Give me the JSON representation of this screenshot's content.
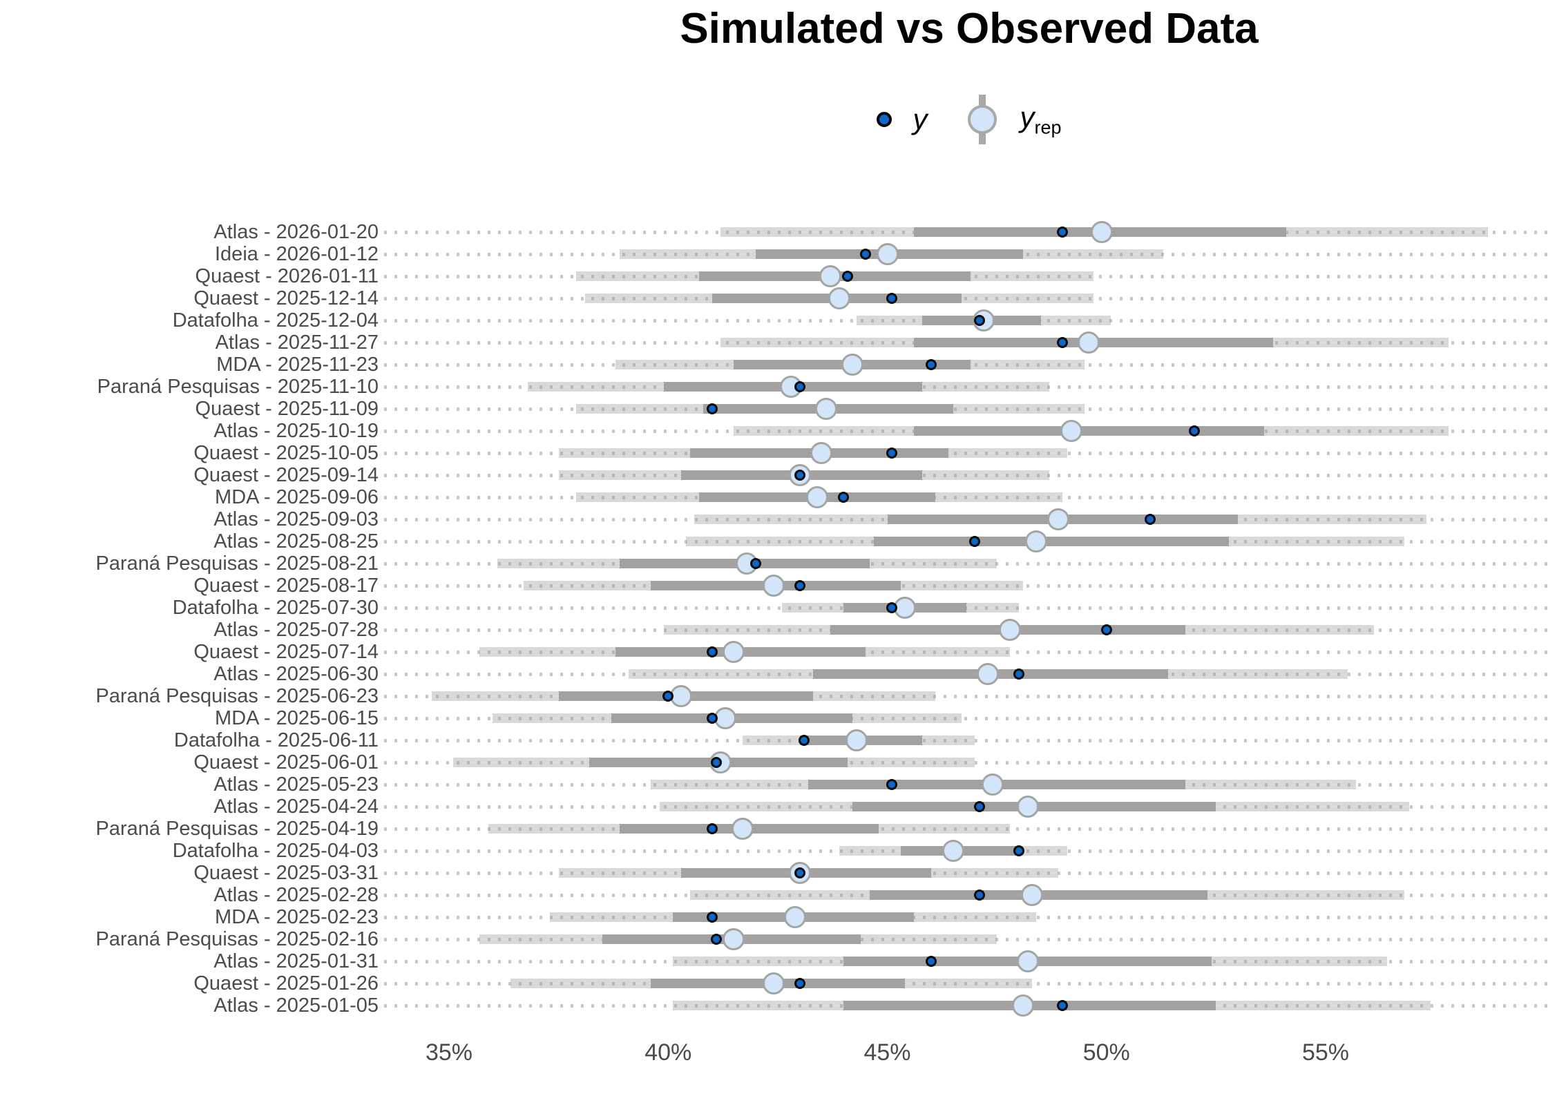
{
  "chart_data": {
    "type": "scatter",
    "variant": "ppc-intervals",
    "title": "Simulated vs Observed Data",
    "legend": {
      "y_label": "y",
      "yrep_base": "y",
      "yrep_sub": "rep"
    },
    "x_axis": {
      "tick_labels": [
        "35%",
        "40%",
        "45%",
        "50%",
        "55%"
      ],
      "tick_values": [
        35,
        40,
        45,
        50,
        55
      ],
      "range": [
        33.5,
        60.3
      ],
      "unit": "%",
      "grid": "dotted-row-guides"
    },
    "legend_position": "top-center",
    "marks": {
      "y": "dark-blue-dot",
      "yrep": "light-blue-circle",
      "inner_interval": "dark-gray-band",
      "outer_interval": "light-gray-band"
    },
    "rows": [
      {
        "label": "Atlas - 2026-01-20",
        "outer": [
          41.2,
          58.7
        ],
        "inner": [
          45.6,
          54.1
        ],
        "y": 49.0,
        "yrep": 49.9
      },
      {
        "label": "Ideia - 2026-01-12",
        "outer": [
          38.9,
          51.3
        ],
        "inner": [
          42.0,
          48.1
        ],
        "y": 44.5,
        "yrep": 45.0
      },
      {
        "label": "Quaest - 2026-01-11",
        "outer": [
          37.9,
          49.7
        ],
        "inner": [
          40.7,
          46.9
        ],
        "y": 44.1,
        "yrep": 43.7
      },
      {
        "label": "Quaest - 2025-12-14",
        "outer": [
          38.1,
          49.7
        ],
        "inner": [
          41.0,
          46.7
        ],
        "y": 45.1,
        "yrep": 43.9
      },
      {
        "label": "Datafolha - 2025-12-04",
        "outer": [
          44.3,
          50.1
        ],
        "inner": [
          45.8,
          48.5
        ],
        "y": 47.1,
        "yrep": 47.2
      },
      {
        "label": "Atlas - 2025-11-27",
        "outer": [
          41.2,
          57.8
        ],
        "inner": [
          45.6,
          53.8
        ],
        "y": 49.0,
        "yrep": 49.6
      },
      {
        "label": "MDA - 2025-11-23",
        "outer": [
          38.8,
          49.5
        ],
        "inner": [
          41.5,
          46.9
        ],
        "y": 46.0,
        "yrep": 44.2
      },
      {
        "label": "Paraná Pesquisas - 2025-11-10",
        "outer": [
          36.8,
          48.7
        ],
        "inner": [
          39.9,
          45.8
        ],
        "y": 43.0,
        "yrep": 42.8
      },
      {
        "label": "Quaest - 2025-11-09",
        "outer": [
          37.9,
          49.5
        ],
        "inner": [
          40.8,
          46.5
        ],
        "y": 41.0,
        "yrep": 43.6
      },
      {
        "label": "Atlas - 2025-10-19",
        "outer": [
          41.5,
          57.8
        ],
        "inner": [
          45.6,
          53.6
        ],
        "y": 52.0,
        "yrep": 49.2
      },
      {
        "label": "Quaest - 2025-10-05",
        "outer": [
          37.5,
          49.1
        ],
        "inner": [
          40.5,
          46.4
        ],
        "y": 45.1,
        "yrep": 43.5
      },
      {
        "label": "Quaest - 2025-09-14",
        "outer": [
          37.5,
          48.7
        ],
        "inner": [
          40.3,
          45.8
        ],
        "y": 43.0,
        "yrep": 43.0
      },
      {
        "label": "MDA - 2025-09-06",
        "outer": [
          37.9,
          49.0
        ],
        "inner": [
          40.7,
          46.1
        ],
        "y": 44.0,
        "yrep": 43.4
      },
      {
        "label": "Atlas - 2025-09-03",
        "outer": [
          40.6,
          57.3
        ],
        "inner": [
          45.0,
          53.0
        ],
        "y": 51.0,
        "yrep": 48.9
      },
      {
        "label": "Atlas - 2025-08-25",
        "outer": [
          40.4,
          56.8
        ],
        "inner": [
          44.7,
          52.8
        ],
        "y": 47.0,
        "yrep": 48.4
      },
      {
        "label": "Paraná Pesquisas - 2025-08-21",
        "outer": [
          36.1,
          47.5
        ],
        "inner": [
          38.9,
          44.6
        ],
        "y": 42.0,
        "yrep": 41.8
      },
      {
        "label": "Quaest - 2025-08-17",
        "outer": [
          36.7,
          48.1
        ],
        "inner": [
          39.6,
          45.3
        ],
        "y": 43.0,
        "yrep": 42.4
      },
      {
        "label": "Datafolha - 2025-07-30",
        "outer": [
          42.6,
          48.0
        ],
        "inner": [
          44.0,
          46.8
        ],
        "y": 45.1,
        "yrep": 45.4
      },
      {
        "label": "Atlas - 2025-07-28",
        "outer": [
          39.9,
          56.1
        ],
        "inner": [
          43.7,
          51.8
        ],
        "y": 50.0,
        "yrep": 47.8
      },
      {
        "label": "Quaest - 2025-07-14",
        "outer": [
          35.7,
          47.8
        ],
        "inner": [
          38.8,
          44.5
        ],
        "y": 41.0,
        "yrep": 41.5
      },
      {
        "label": "Atlas - 2025-06-30",
        "outer": [
          39.1,
          55.5
        ],
        "inner": [
          43.3,
          51.4
        ],
        "y": 48.0,
        "yrep": 47.3
      },
      {
        "label": "Paraná Pesquisas - 2025-06-23",
        "outer": [
          34.6,
          46.1
        ],
        "inner": [
          37.5,
          43.3
        ],
        "y": 40.0,
        "yrep": 40.3
      },
      {
        "label": "MDA - 2025-06-15",
        "outer": [
          36.0,
          46.7
        ],
        "inner": [
          38.7,
          44.2
        ],
        "y": 41.0,
        "yrep": 41.3
      },
      {
        "label": "Datafolha - 2025-06-11",
        "outer": [
          41.7,
          47.0
        ],
        "inner": [
          43.0,
          45.8
        ],
        "y": 43.1,
        "yrep": 44.3
      },
      {
        "label": "Quaest - 2025-06-01",
        "outer": [
          35.1,
          47.0
        ],
        "inner": [
          38.2,
          44.1
        ],
        "y": 41.1,
        "yrep": 41.2
      },
      {
        "label": "Atlas - 2025-05-23",
        "outer": [
          39.6,
          55.7
        ],
        "inner": [
          43.2,
          51.8
        ],
        "y": 45.1,
        "yrep": 47.4
      },
      {
        "label": "Atlas - 2025-04-24",
        "outer": [
          39.8,
          56.9
        ],
        "inner": [
          44.2,
          52.5
        ],
        "y": 47.1,
        "yrep": 48.2
      },
      {
        "label": "Paraná Pesquisas - 2025-04-19",
        "outer": [
          35.9,
          47.8
        ],
        "inner": [
          38.9,
          44.8
        ],
        "y": 41.0,
        "yrep": 41.7
      },
      {
        "label": "Datafolha - 2025-04-03",
        "outer": [
          43.9,
          49.1
        ],
        "inner": [
          45.3,
          48.0
        ],
        "y": 48.0,
        "yrep": 46.5
      },
      {
        "label": "Quaest - 2025-03-31",
        "outer": [
          37.5,
          48.9
        ],
        "inner": [
          40.3,
          46.0
        ],
        "y": 43.0,
        "yrep": 43.0
      },
      {
        "label": "Atlas - 2025-02-28",
        "outer": [
          40.5,
          56.8
        ],
        "inner": [
          44.6,
          52.3
        ],
        "y": 47.1,
        "yrep": 48.3
      },
      {
        "label": "MDA - 2025-02-23",
        "outer": [
          37.3,
          48.4
        ],
        "inner": [
          40.1,
          45.6
        ],
        "y": 41.0,
        "yrep": 42.9
      },
      {
        "label": "Paraná Pesquisas - 2025-02-16",
        "outer": [
          35.7,
          47.5
        ],
        "inner": [
          38.5,
          44.4
        ],
        "y": 41.1,
        "yrep": 41.5
      },
      {
        "label": "Atlas - 2025-01-31",
        "outer": [
          40.1,
          56.4
        ],
        "inner": [
          44.0,
          52.4
        ],
        "y": 46.0,
        "yrep": 48.2
      },
      {
        "label": "Quaest - 2025-01-26",
        "outer": [
          36.4,
          48.3
        ],
        "inner": [
          39.6,
          45.4
        ],
        "y": 43.0,
        "yrep": 42.4
      },
      {
        "label": "Atlas - 2025-01-05",
        "outer": [
          40.1,
          57.4
        ],
        "inner": [
          44.0,
          52.5
        ],
        "y": 49.0,
        "yrep": 48.1
      }
    ],
    "colors": {
      "y_dot": "#0d68c8",
      "y_dot_ring": "#0a0a0a",
      "yrep_fill": "#d3e5f8",
      "yrep_stroke": "#a4a4a4",
      "inner_band": "#a2a2a2",
      "outer_band": "#dcdcdc",
      "guide_dots": "#c9c9c9",
      "axis_text": "#4b4b4b"
    }
  }
}
